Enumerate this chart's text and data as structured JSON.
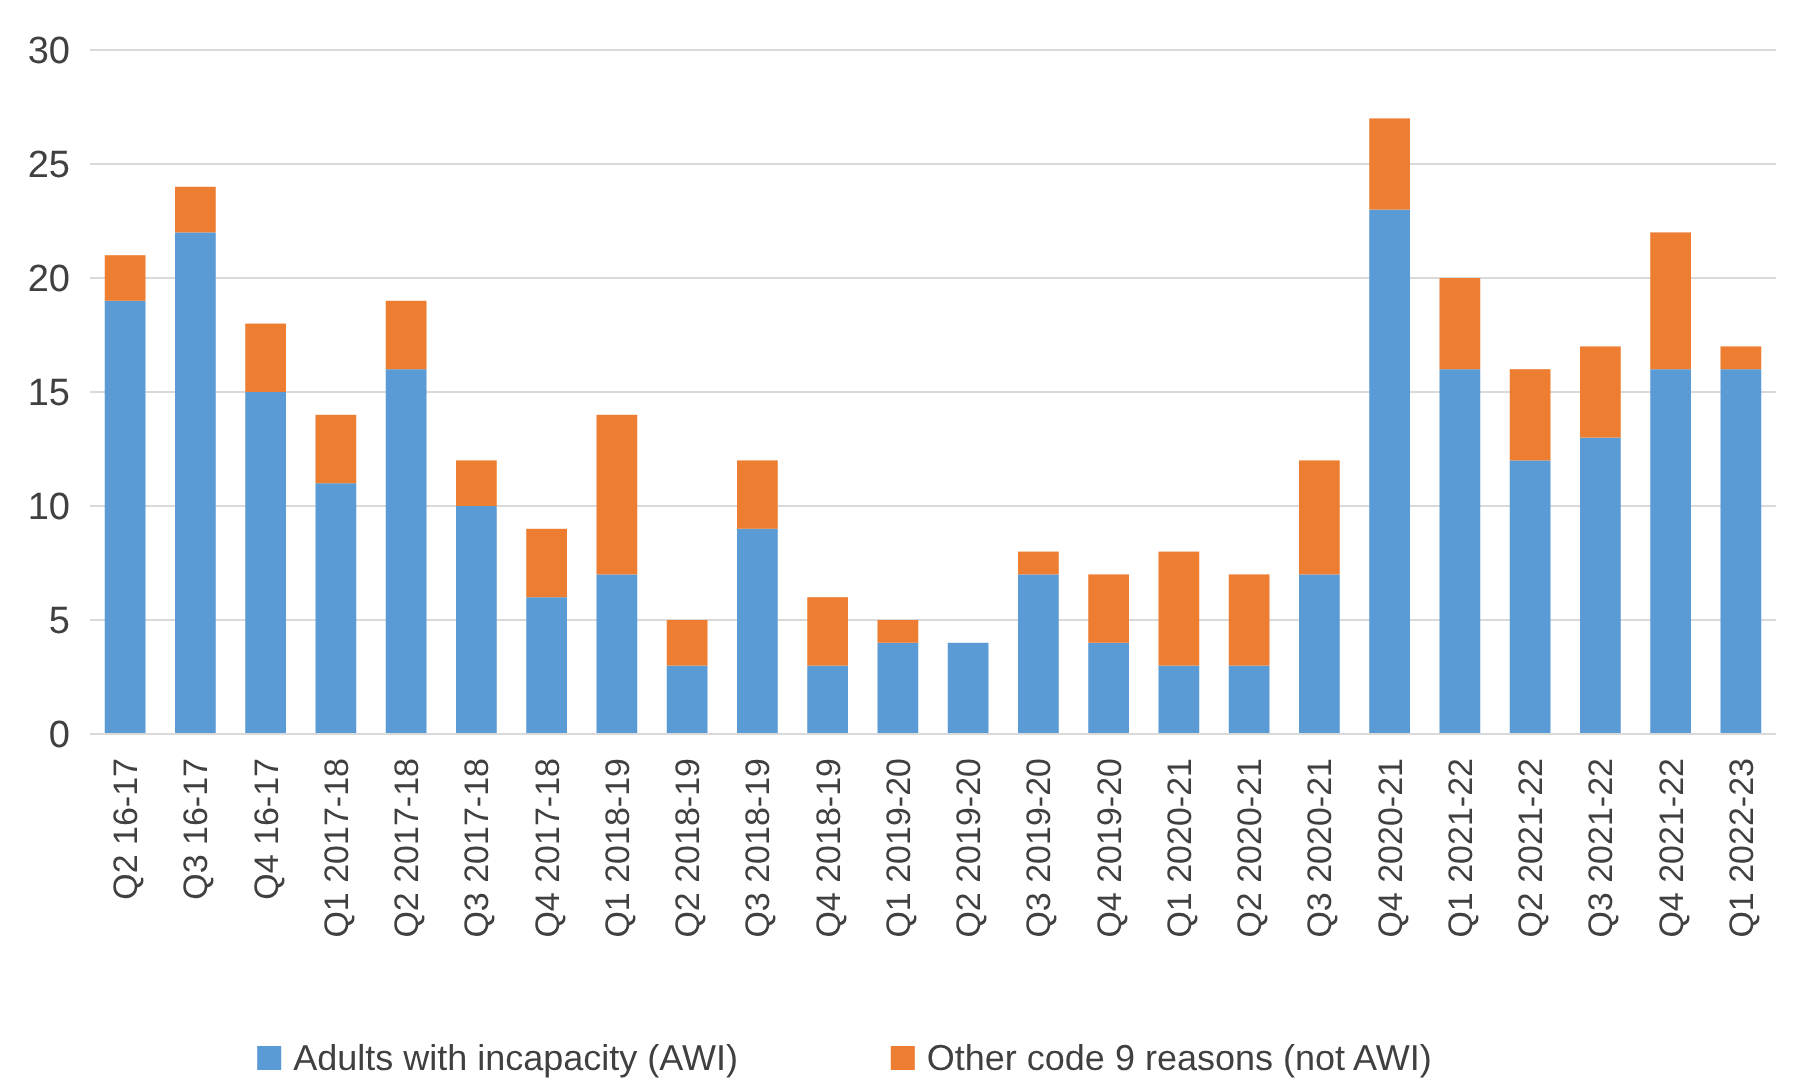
{
  "chart_data": {
    "type": "bar",
    "stacked": true,
    "categories": [
      "Q2 16-17",
      "Q3 16-17",
      "Q4 16-17",
      "Q1 2017-18",
      "Q2 2017-18",
      "Q3 2017-18",
      "Q4 2017-18",
      "Q1 2018-19",
      "Q2 2018-19",
      "Q3 2018-19",
      "Q4 2018-19",
      "Q1 2019-20",
      "Q2 2019-20",
      "Q3 2019-20",
      "Q4 2019-20",
      "Q1 2020-21",
      "Q2 2020-21",
      "Q3 2020-21",
      "Q4 2020-21",
      "Q1 2021-22",
      "Q2 2021-22",
      "Q3 2021-22",
      "Q4 2021-22",
      "Q1 2022-23"
    ],
    "series": [
      {
        "name": "Adults with incapacity (AWI)",
        "color": "#5b9bd5",
        "values": [
          19,
          22,
          15,
          11,
          16,
          10,
          6,
          7,
          3,
          9,
          3,
          4,
          4,
          7,
          4,
          3,
          3,
          7,
          23,
          16,
          12,
          13,
          16,
          16
        ]
      },
      {
        "name": "Other code 9 reasons (not AWI)",
        "color": "#ed7d31",
        "values": [
          2,
          2,
          3,
          3,
          3,
          2,
          3,
          7,
          2,
          3,
          3,
          1,
          0,
          1,
          3,
          5,
          4,
          5,
          4,
          4,
          4,
          4,
          6,
          1
        ]
      }
    ],
    "ylim": [
      0,
      30
    ],
    "yticks": [
      0,
      5,
      10,
      15,
      20,
      25,
      30
    ],
    "grid": "y",
    "legend": "bottom"
  }
}
